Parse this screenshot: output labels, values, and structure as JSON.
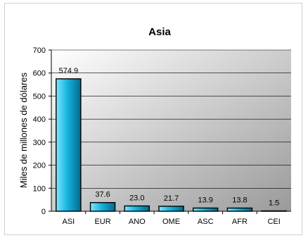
{
  "chart_data": {
    "type": "bar",
    "title": "Asia",
    "ylabel": "Miles de millones de dólares",
    "xlabel": "",
    "categories": [
      "ASI",
      "EUR",
      "ANO",
      "OME",
      "ASC",
      "AFR",
      "CEI"
    ],
    "values": [
      574.9,
      37.6,
      23.0,
      21.7,
      13.9,
      13.8,
      1.5
    ],
    "value_labels": [
      "574.9",
      "37.6",
      "23.0",
      "21.7",
      "13.9",
      "13.8",
      "1.5"
    ],
    "yticks": [
      0,
      100,
      200,
      300,
      400,
      500,
      600,
      700
    ],
    "ylim": [
      0,
      700
    ],
    "grid": true,
    "legend": "none",
    "colors": {
      "bar_light": "#7fe6ff",
      "bar_mid": "#14b4e0",
      "bar_dark": "#056a8a",
      "bar_outline": "#000000",
      "plot_bg_light": "#ffffff",
      "plot_bg_dark": "#9a9a9a"
    }
  }
}
